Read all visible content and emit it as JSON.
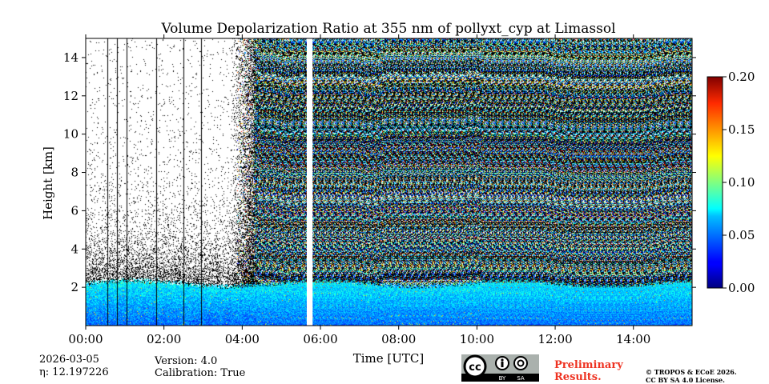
{
  "chart_data": {
    "type": "heatmap",
    "title": "Volume Depolarization Ratio at 355 nm of pollyxt_cyp at Limassol",
    "xlabel": "Time [UTC]",
    "ylabel": "Height [km]",
    "xlim": [
      0,
      15.5
    ],
    "ylim": [
      0,
      15
    ],
    "x_ticks": [
      0,
      2,
      4,
      6,
      8,
      10,
      12,
      14
    ],
    "x_tick_labels": [
      "00:00",
      "02:00",
      "04:00",
      "06:00",
      "08:00",
      "10:00",
      "12:00",
      "14:00"
    ],
    "y_ticks": [
      2,
      4,
      6,
      8,
      10,
      12,
      14
    ],
    "y_tick_labels": [
      "2",
      "4",
      "6",
      "8",
      "10",
      "12",
      "14"
    ],
    "colorbar": {
      "min": 0.0,
      "max": 0.2,
      "ticks": [
        0.0,
        0.05,
        0.1,
        0.15,
        0.2
      ],
      "tick_labels": [
        "0.00",
        "0.05",
        "0.10",
        "0.15",
        "0.20"
      ],
      "colormap": "jet"
    },
    "features": {
      "boundary_layer_top_km": 2.2,
      "low_noise_period_end_utc_h": 4.3,
      "data_gap_utc_h": [
        5.65,
        5.8
      ],
      "profile_gap_times_utc_h": [
        0.55,
        0.8,
        1.05,
        1.8,
        2.5,
        2.95
      ],
      "noise_level_in_gap": "high"
    }
  },
  "metadata": {
    "date": "2026-03-05",
    "eta_label": "η: 12.197226",
    "version": "Version: 4.0",
    "calibration": "Calibration: True"
  },
  "footer": {
    "preliminary_line1": "Preliminary",
    "preliminary_line2": "Results.",
    "copyright_line1": "© TROPOS & ECoE 2026.",
    "copyright_line2": "CC BY SA 4.0 License.",
    "license_icon": "cc-by-sa-icon",
    "license_badge_cc": "cc",
    "license_badge_by": "BY",
    "license_badge_sa": "SA"
  },
  "colors": {
    "background": "#ffffff",
    "preliminary": "#ee3322",
    "badge_bg": "#aab1ad",
    "badge_dark": "#000000"
  }
}
